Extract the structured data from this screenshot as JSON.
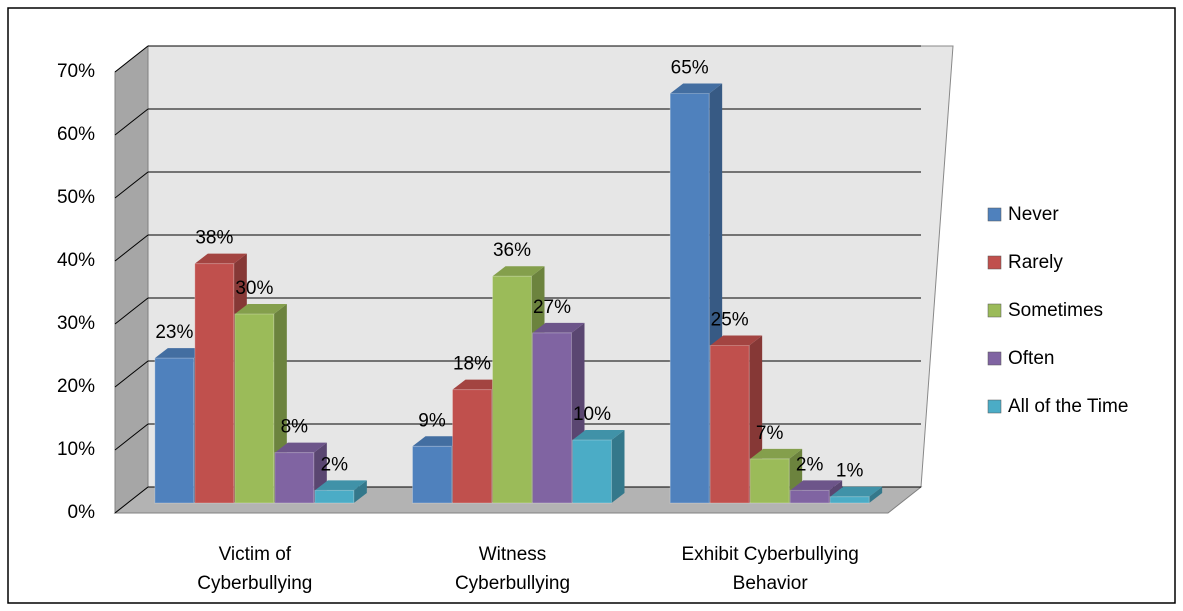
{
  "chart_data": {
    "type": "bar3d",
    "categories": [
      "Victim of Cyberbullying",
      "Witness Cyberbullying",
      "Exhibit Cyberbullying Behavior"
    ],
    "series": [
      {
        "name": "Never",
        "color": "#4f81bd",
        "values": [
          23,
          9,
          65
        ],
        "value_labels": [
          "23%",
          "9%",
          "65%"
        ]
      },
      {
        "name": "Rarely",
        "color": "#c0504d",
        "values": [
          38,
          18,
          25
        ],
        "value_labels": [
          "38%",
          "18%",
          "25%"
        ]
      },
      {
        "name": "Sometimes",
        "color": "#9bbb59",
        "values": [
          30,
          36,
          7
        ],
        "value_labels": [
          "30%",
          "36%",
          "7%"
        ]
      },
      {
        "name": "Often",
        "color": "#8064a2",
        "values": [
          8,
          27,
          2
        ],
        "value_labels": [
          "8%",
          "27%",
          "2%"
        ]
      },
      {
        "name": "All of the Time",
        "color": "#4bacc6",
        "values": [
          2,
          10,
          1
        ],
        "value_labels": [
          "2%",
          "10%",
          "1%"
        ]
      }
    ],
    "ylim": [
      0,
      70
    ],
    "yticks": [
      {
        "value": 0,
        "label": "0%"
      },
      {
        "value": 10,
        "label": "10%"
      },
      {
        "value": 20,
        "label": "20%"
      },
      {
        "value": 30,
        "label": "30%"
      },
      {
        "value": 40,
        "label": "40%"
      },
      {
        "value": 50,
        "label": "50%"
      },
      {
        "value": 60,
        "label": "60%"
      },
      {
        "value": 70,
        "label": "70%"
      }
    ],
    "grid": true,
    "legend": "right"
  }
}
